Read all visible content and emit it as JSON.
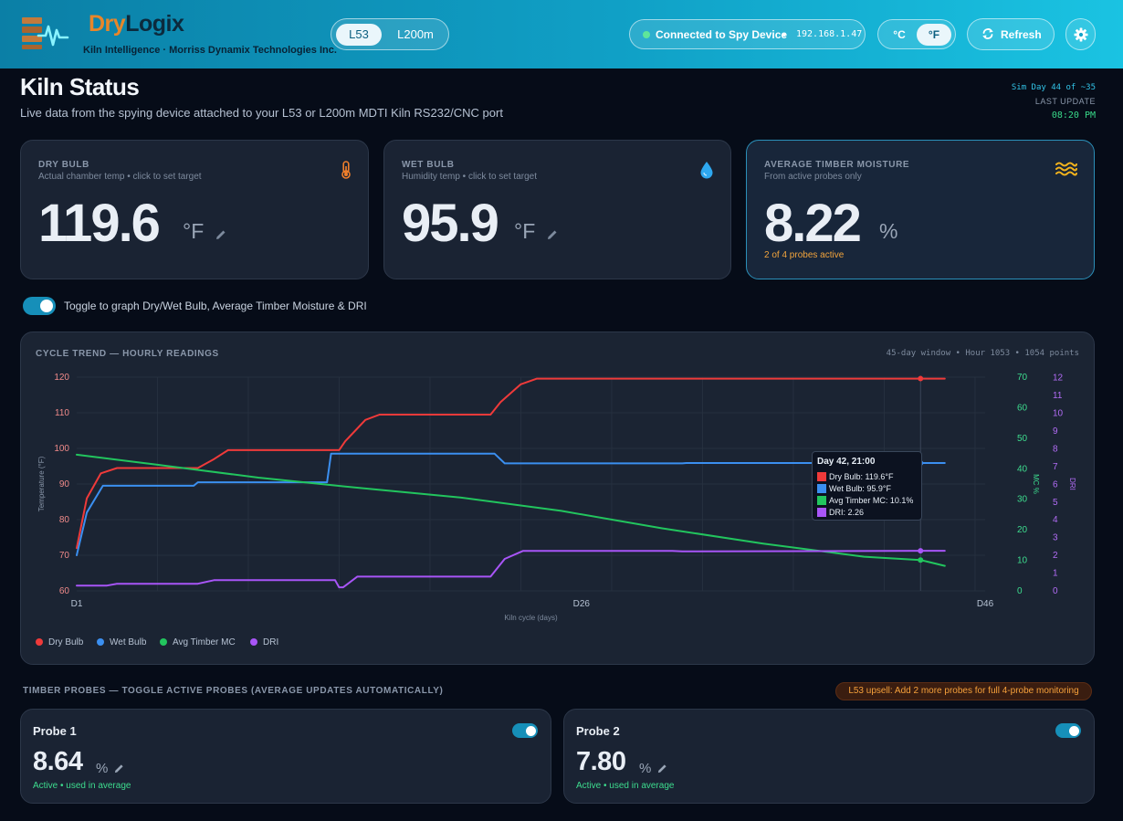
{
  "header": {
    "brand_dry": "Dry",
    "brand_logix": "Logix",
    "brand_sub": "Kiln Intelligence · Morriss Dynamix Technologies Inc.",
    "models": [
      "L53",
      "L200m"
    ],
    "active_model": "L53",
    "connection_label": "Connected to Spy Device",
    "connection_sep": "•",
    "connection_ip": "192.168.1.47",
    "units": [
      "°C",
      "°F"
    ],
    "active_unit": "°F",
    "refresh_label": "Refresh",
    "icons": [
      "logo-mark",
      "refresh-icon",
      "gear-icon"
    ]
  },
  "page": {
    "title": "Kiln Status",
    "subtitle": "Live data from the spying device attached to your L53 or L200m MDTI Kiln RS232/CNC port",
    "sim_day": "Sim Day 44 of ~35",
    "last_update_label": "LAST UPDATE",
    "last_update_time": "08:20 PM"
  },
  "kpis": [
    {
      "label": "DRY BULB",
      "desc": "Actual chamber temp • click to set target",
      "value": "119.6",
      "unit": "°F",
      "icon": "thermometer-icon",
      "icon_color": "#f07f2b"
    },
    {
      "label": "WET BULB",
      "desc": "Humidity temp • click to set target",
      "value": "95.9",
      "unit": "°F",
      "icon": "water-drop-icon",
      "icon_color": "#2ea8f0"
    },
    {
      "label": "AVERAGE TIMBER MOISTURE",
      "desc": "From active probes only",
      "value": "8.22",
      "unit": "%",
      "note": "2 of 4 probes active",
      "icon": "waves-icon",
      "icon_color": "#f2b31d"
    }
  ],
  "graph_toggle": {
    "label": "Toggle to graph Dry/Wet Bulb, Average Timber Moisture & DRI",
    "on": true
  },
  "chart": {
    "title": "CYCLE TREND — HOURLY READINGS",
    "meta": "45-day window • Hour 1053 • 1054 points",
    "tooltip": {
      "title": "Day 42, 21:00",
      "rows": [
        {
          "text": "Dry Bulb: 119.6°F",
          "color": "#ef3a3a"
        },
        {
          "text": "Wet Bulb: 95.9°F",
          "color": "#3b8ff0"
        },
        {
          "text": "Avg Timber MC: 10.1%",
          "color": "#22c55e"
        },
        {
          "text": "DRI: 2.26",
          "color": "#a855f7"
        }
      ]
    }
  },
  "chart_data": {
    "type": "line",
    "title": "CYCLE TREND — HOURLY READINGS",
    "xlabel": "Kiln cycle (days)",
    "ylabel": "Temperature (°F)",
    "y2label": "MC %",
    "y3label": "DRI",
    "x_ticks": [
      "D1",
      "D26",
      "D46"
    ],
    "xlim": [
      1,
      46
    ],
    "ylim": [
      60,
      120
    ],
    "y_ticks": [
      60,
      70,
      80,
      90,
      100,
      110,
      120
    ],
    "y2lim": [
      0,
      70
    ],
    "y2_ticks": [
      0,
      10,
      20,
      30,
      40,
      50,
      60,
      70
    ],
    "y3lim": [
      0,
      12.5
    ],
    "y3_ticks": [
      0,
      1,
      2,
      3,
      4,
      5,
      6,
      7,
      8,
      9,
      10,
      11,
      12
    ],
    "grid": true,
    "legend": "bottom-left",
    "series": [
      {
        "name": "Dry Bulb",
        "color": "#ef3a3a",
        "axis": "left",
        "x": [
          1,
          1.5,
          2.2,
          3,
          6,
          7,
          7.8,
          8.5,
          14,
          14.3,
          15.3,
          16,
          16.5,
          21.5,
          22,
          23,
          23.8,
          44
        ],
        "y": [
          72,
          86,
          93,
          94.5,
          94.5,
          94.5,
          97,
          99.5,
          99.5,
          102,
          108,
          109.5,
          109.5,
          109.5,
          113,
          118,
          119.6,
          119.6
        ]
      },
      {
        "name": "Wet Bulb",
        "color": "#3b8ff0",
        "axis": "left",
        "x": [
          1,
          1.5,
          2.3,
          6.8,
          7,
          13.4,
          13.6,
          15.5,
          21.7,
          22.2,
          31,
          31.2,
          44
        ],
        "y": [
          70,
          82,
          89.5,
          89.5,
          90.5,
          90.5,
          98.5,
          98.5,
          98.5,
          95.8,
          95.8,
          95.9,
          95.9
        ]
      },
      {
        "name": "Avg Timber MC",
        "color": "#22c55e",
        "axis": "right",
        "x": [
          1,
          5,
          10,
          15,
          20,
          25,
          30,
          35,
          40,
          42.8,
          44
        ],
        "y": [
          44.6,
          41.3,
          37.1,
          33.7,
          30.6,
          26.2,
          20.5,
          15.5,
          11.2,
          10.1,
          8.2
        ]
      },
      {
        "name": "DRI",
        "color": "#a855f7",
        "axis": "right2",
        "x": [
          1,
          2.5,
          3,
          7,
          7.8,
          13.8,
          14,
          14.2,
          14.9,
          15.2,
          21.5,
          22.2,
          23.1,
          30.5,
          31,
          44
        ],
        "y": [
          0.3,
          0.3,
          0.4,
          0.4,
          0.6,
          0.6,
          0.2,
          0.2,
          0.8,
          0.8,
          0.8,
          1.8,
          2.25,
          2.25,
          2.22,
          2.26
        ]
      }
    ]
  },
  "probes": {
    "title": "TIMBER PROBES — TOGGLE ACTIVE PROBES (AVERAGE UPDATES AUTOMATICALLY)",
    "upsell": "L53 upsell: Add 2 more probes for full 4-probe monitoring",
    "items": [
      {
        "name": "Probe 1",
        "value": "8.64",
        "unit": "%",
        "status": "Active • used in average",
        "active": true
      },
      {
        "name": "Probe 2",
        "value": "7.80",
        "unit": "%",
        "status": "Active • used in average",
        "active": true
      }
    ]
  }
}
